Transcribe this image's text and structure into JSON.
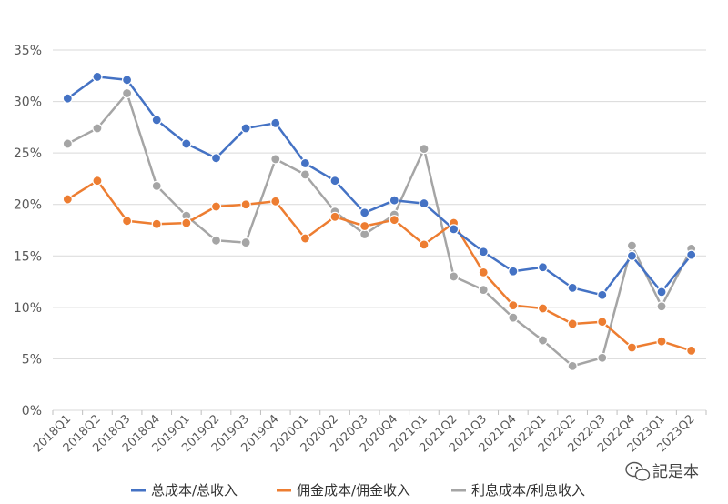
{
  "chart_data": {
    "type": "line",
    "title": "",
    "xlabel": "",
    "ylabel": "",
    "ylim": [
      0,
      35
    ],
    "y_ticks": [
      "0%",
      "5%",
      "10%",
      "15%",
      "20%",
      "25%",
      "30%",
      "35%"
    ],
    "grid": true,
    "legend_position": "bottom",
    "categories": [
      "2018Q1",
      "2018Q2",
      "2018Q3",
      "2018Q4",
      "2019Q1",
      "2019Q2",
      "2019Q3",
      "2019Q4",
      "2020Q1",
      "2020Q2",
      "2020Q3",
      "2020Q4",
      "2021Q1",
      "2021Q2",
      "2021Q3",
      "2021Q4",
      "2022Q1",
      "2022Q2",
      "2022Q3",
      "2022Q4",
      "2023Q1",
      "2023Q2"
    ],
    "series": [
      {
        "name": "总成本/总收入",
        "color": "#4472c4",
        "values": [
          30.3,
          32.4,
          32.1,
          28.2,
          25.9,
          24.5,
          27.4,
          27.9,
          24.0,
          22.3,
          19.2,
          20.4,
          20.1,
          17.6,
          15.4,
          13.5,
          13.9,
          11.9,
          11.2,
          15.0,
          11.5,
          15.1
        ]
      },
      {
        "name": "佣金成本/佣金收入",
        "color": "#ed7d31",
        "values": [
          20.5,
          22.3,
          18.4,
          18.1,
          18.2,
          19.8,
          20.0,
          20.3,
          16.7,
          18.8,
          17.9,
          18.5,
          16.1,
          18.2,
          13.4,
          10.2,
          9.9,
          8.4,
          8.6,
          6.1,
          6.7,
          5.8
        ]
      },
      {
        "name": "利息成本/利息收入",
        "color": "#a5a5a5",
        "values": [
          25.9,
          27.4,
          30.8,
          21.8,
          18.9,
          16.5,
          16.3,
          24.4,
          22.9,
          19.3,
          17.1,
          19.0,
          25.4,
          13.0,
          11.7,
          9.0,
          6.8,
          4.3,
          5.1,
          16.0,
          10.1,
          15.7
        ]
      }
    ]
  },
  "watermark": {
    "text": "記是本",
    "icon": "wechat-icon"
  }
}
